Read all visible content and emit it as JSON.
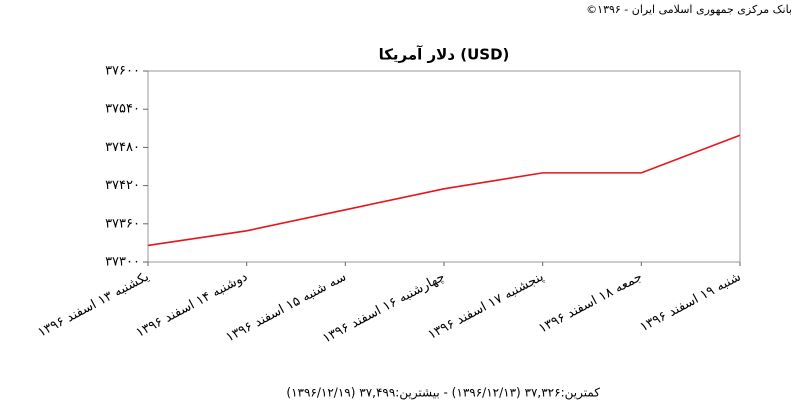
{
  "chart_data": {
    "type": "line",
    "title": "دلار آمریکا (USD)",
    "source": "بانک مرکزی جمهوری اسلامی ایران - ۱۳۹۶©",
    "summary": "کمترین:۳۷,۳۲۶ (۱۳۹۶/۱۲/۱۳) - بیشترین:۳۷,۴۹۹ (۱۳۹۶/۱۲/۱۹)",
    "categories": [
      "یکشنبه ۱۳ اسفند ۱۳۹۶",
      "دوشنبه ۱۴ اسفند ۱۳۹۶",
      "سه شنبه ۱۵ اسفند ۱۳۹۶",
      "چهارشنبه ۱۶ اسفند ۱۳۹۶",
      "پنجشنبه ۱۷ اسفند ۱۳۹۶",
      "جمعه ۱۸ اسفند ۱۳۹۶",
      "شنبه ۱۹ اسفند ۱۳۹۶"
    ],
    "values": [
      37326,
      37349,
      37382,
      37415,
      37440,
      37440,
      37499
    ],
    "color": "#e8141b",
    "ylim": [
      37300,
      37600
    ],
    "yticks": [
      {
        "value": 37300,
        "label": "۳۷۳۰۰"
      },
      {
        "value": 37360,
        "label": "۳۷۳۶۰"
      },
      {
        "value": 37420,
        "label": "۳۷۴۲۰"
      },
      {
        "value": 37480,
        "label": "۳۷۴۸۰"
      },
      {
        "value": 37540,
        "label": "۳۷۵۴۰"
      },
      {
        "value": 37600,
        "label": "۳۷۶۰۰"
      }
    ],
    "grid": false
  }
}
